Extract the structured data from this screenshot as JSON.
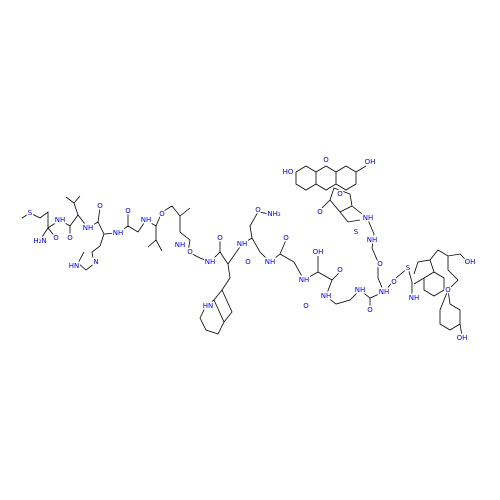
{
  "atoms": [
    "S",
    "H₂N",
    "O",
    "NH",
    "O",
    "NH",
    "HN",
    "N",
    "O",
    "NH",
    "O",
    "NH",
    "O",
    "NH",
    "O",
    "NH",
    "O",
    "HN",
    "NH",
    "O",
    "O",
    "NH₂",
    "NH",
    "O",
    "NH",
    "OH",
    "O",
    "NH",
    "O",
    "NH",
    "O",
    "NH",
    "S",
    "NH",
    "O",
    "O",
    "O",
    "OH",
    "OH",
    "NH",
    "S",
    "NH",
    "HO",
    "O",
    "OH",
    "O",
    "O"
  ]
}
